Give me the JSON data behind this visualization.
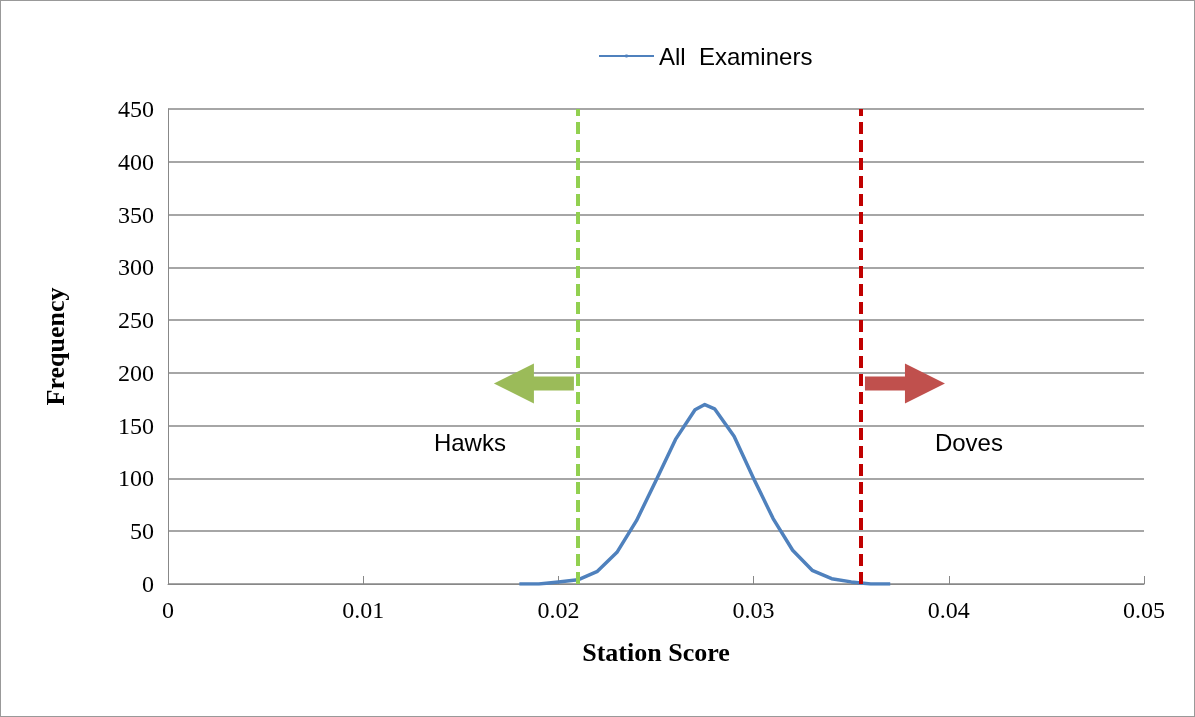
{
  "chart_data": {
    "type": "line",
    "xlabel": "Station Score",
    "ylabel": "Frequency",
    "x": [
      0.018,
      0.019,
      0.02,
      0.021,
      0.022,
      0.023,
      0.024,
      0.025,
      0.026,
      0.027,
      0.0275,
      0.028,
      0.029,
      0.03,
      0.031,
      0.032,
      0.033,
      0.034,
      0.035,
      0.036,
      0.037
    ],
    "series": [
      {
        "name": "All  Examiners",
        "color": "#4f81bd",
        "values": [
          0,
          0,
          2,
          4,
          12,
          30,
          60,
          98,
          137,
          165,
          170,
          166,
          140,
          100,
          62,
          32,
          13,
          5,
          2,
          0,
          0
        ]
      }
    ],
    "xlim": [
      0,
      0.05
    ],
    "xticks": [
      0,
      0.01,
      0.02,
      0.03,
      0.04,
      0.05
    ],
    "ylim": [
      0,
      450
    ],
    "yticks": [
      0,
      50,
      100,
      150,
      200,
      250,
      300,
      350,
      400,
      450
    ],
    "ref_lines": [
      {
        "axis": "x",
        "value": 0.021,
        "color": "#92d050",
        "line_style": "dashed"
      },
      {
        "axis": "x",
        "value": 0.0355,
        "color": "#c00000",
        "line_style": "dashed"
      }
    ],
    "annotations": [
      "Hawks",
      "Doves"
    ],
    "grid": "y",
    "legend": "top",
    "marker": "none",
    "line_style": "solid"
  }
}
